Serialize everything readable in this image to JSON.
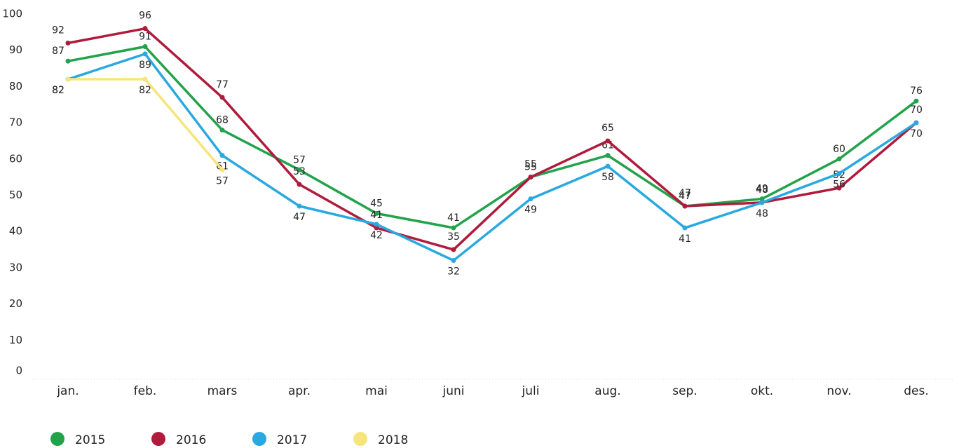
{
  "chart_data": {
    "type": "line",
    "categories": [
      "jan.",
      "feb.",
      "mars",
      "apr.",
      "mai",
      "juni",
      "juli",
      "aug.",
      "sep.",
      "okt.",
      "nov.",
      "des."
    ],
    "series": [
      {
        "name": "2015",
        "color": "#22a34b",
        "values": [
          87,
          91,
          68,
          57,
          45,
          41,
          55,
          61,
          47,
          49,
          60,
          76
        ]
      },
      {
        "name": "2016",
        "color": "#b01a3c",
        "values": [
          92,
          96,
          77,
          53,
          41,
          35,
          55,
          65,
          47,
          48,
          52,
          70
        ]
      },
      {
        "name": "2017",
        "color": "#2aa8e0",
        "values": [
          82,
          89,
          61,
          47,
          42,
          32,
          49,
          58,
          41,
          48,
          56,
          70
        ]
      },
      {
        "name": "2018",
        "color": "#f5e57a",
        "values": [
          82,
          82,
          57,
          null,
          null,
          null,
          null,
          null,
          null,
          null,
          null,
          null
        ]
      }
    ],
    "ylim": [
      0,
      100
    ],
    "yticks": [
      0,
      10,
      20,
      30,
      40,
      50,
      60,
      70,
      80,
      90,
      100
    ],
    "legend": "bottom-left"
  }
}
